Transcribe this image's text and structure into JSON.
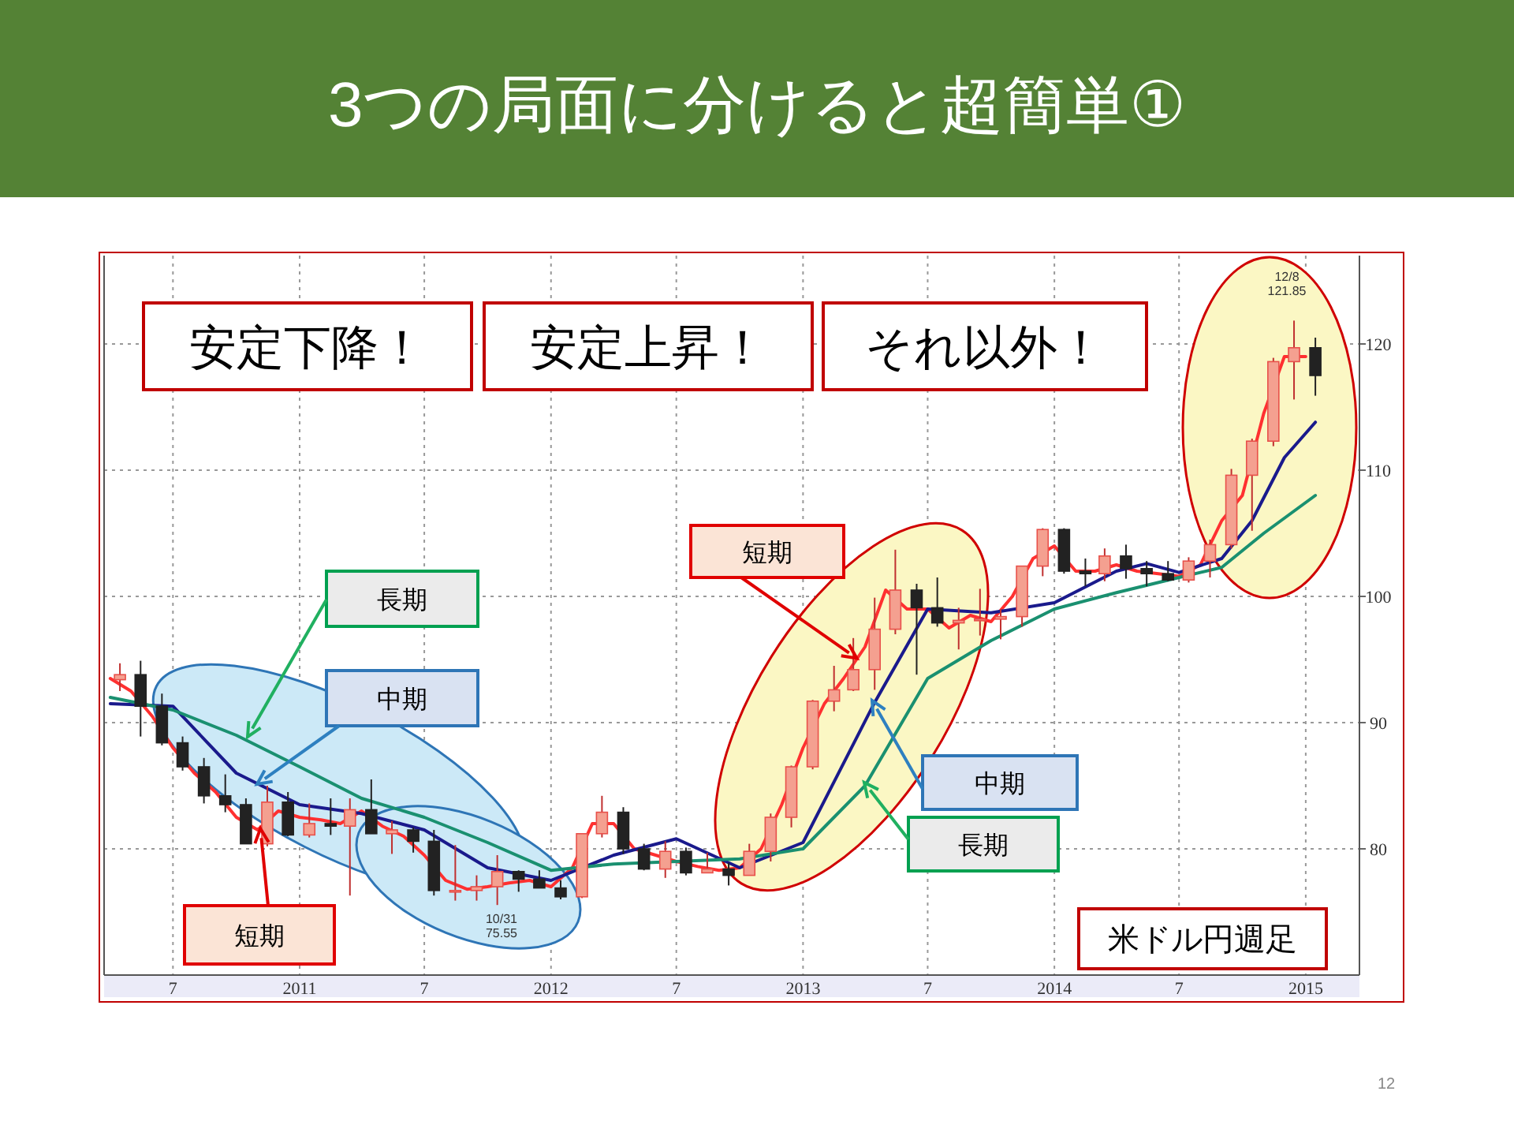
{
  "chart_data": {
    "type": "candlestick",
    "title": "3つの局面に分けると超簡単①",
    "x": [
      "2010-04-15",
      "2010-05-15",
      "2010-06-15",
      "2010-07-15",
      "2010-08-15",
      "2010-09-15",
      "2010-10-15",
      "2010-11-15",
      "2010-12-15",
      "2011-01-15",
      "2011-02-15",
      "2011-03-15",
      "2011-04-15",
      "2011-05-15",
      "2011-06-15",
      "2011-07-15",
      "2011-08-15",
      "2011-09-15",
      "2011-10-15",
      "2011-11-15",
      "2011-12-15",
      "2012-01-15",
      "2012-02-15",
      "2012-03-15",
      "2012-04-15",
      "2012-05-15",
      "2012-06-15",
      "2012-07-15",
      "2012-08-15",
      "2012-09-15",
      "2012-10-15",
      "2012-11-15",
      "2012-12-15",
      "2013-01-15",
      "2013-02-15",
      "2013-03-15",
      "2013-04-15",
      "2013-05-15",
      "2013-06-15",
      "2013-07-15",
      "2013-08-15",
      "2013-09-15",
      "2013-10-15",
      "2013-11-15",
      "2013-12-15",
      "2014-01-15",
      "2014-02-15",
      "2014-03-15",
      "2014-04-15",
      "2014-05-15",
      "2014-06-15",
      "2014-07-15",
      "2014-08-15",
      "2014-09-15",
      "2014-10-15",
      "2014-11-15",
      "2014-12-15",
      "2015-01-15"
    ],
    "ohlc": [
      [
        93.4,
        94.7,
        92.5,
        93.8
      ],
      [
        93.8,
        94.9,
        88.9,
        91.3
      ],
      [
        91.3,
        92.3,
        88.2,
        88.4
      ],
      [
        88.4,
        88.9,
        86.2,
        86.5
      ],
      [
        86.5,
        87.2,
        83.6,
        84.2
      ],
      [
        84.2,
        85.9,
        82.9,
        83.5
      ],
      [
        83.5,
        84.0,
        80.4,
        80.4
      ],
      [
        80.4,
        85.0,
        80.2,
        83.7
      ],
      [
        83.7,
        84.5,
        81.0,
        81.1
      ],
      [
        81.1,
        83.6,
        80.9,
        82.0
      ],
      [
        82.0,
        84.0,
        81.1,
        81.8
      ],
      [
        81.8,
        84.0,
        76.3,
        83.1
      ],
      [
        83.1,
        85.5,
        81.2,
        81.2
      ],
      [
        81.2,
        82.2,
        79.6,
        81.5
      ],
      [
        81.5,
        81.7,
        79.7,
        80.6
      ],
      [
        80.6,
        81.5,
        76.3,
        76.7
      ],
      [
        76.7,
        80.3,
        75.9,
        76.7
      ],
      [
        76.7,
        77.9,
        75.9,
        77.0
      ],
      [
        77.0,
        79.5,
        75.55,
        78.2
      ],
      [
        78.2,
        78.3,
        76.6,
        77.6
      ],
      [
        77.6,
        78.3,
        76.9,
        76.9
      ],
      [
        76.9,
        77.5,
        76.0,
        76.2
      ],
      [
        76.2,
        81.2,
        76.1,
        81.2
      ],
      [
        81.2,
        84.2,
        80.9,
        82.9
      ],
      [
        82.9,
        83.3,
        79.6,
        80.0
      ],
      [
        80.0,
        80.4,
        78.3,
        78.4
      ],
      [
        78.4,
        80.6,
        77.7,
        79.8
      ],
      [
        79.8,
        80.1,
        77.9,
        78.1
      ],
      [
        78.1,
        79.7,
        78.1,
        78.4
      ],
      [
        78.4,
        78.9,
        77.1,
        77.9
      ],
      [
        77.9,
        80.4,
        77.9,
        79.8
      ],
      [
        79.8,
        82.8,
        79.0,
        82.5
      ],
      [
        82.5,
        86.6,
        81.7,
        86.5
      ],
      [
        86.5,
        91.8,
        86.3,
        91.7
      ],
      [
        91.7,
        94.5,
        90.9,
        92.6
      ],
      [
        92.6,
        96.7,
        92.5,
        94.2
      ],
      [
        94.2,
        99.9,
        92.6,
        97.4
      ],
      [
        97.4,
        103.7,
        97.0,
        100.5
      ],
      [
        100.5,
        101.0,
        93.8,
        99.1
      ],
      [
        99.1,
        101.5,
        97.6,
        97.9
      ],
      [
        97.9,
        99.1,
        95.8,
        98.1
      ],
      [
        98.1,
        100.6,
        96.9,
        98.2
      ],
      [
        98.2,
        99.0,
        96.6,
        98.4
      ],
      [
        98.4,
        102.4,
        97.6,
        102.4
      ],
      [
        102.4,
        105.4,
        101.6,
        105.3
      ],
      [
        105.3,
        105.4,
        101.8,
        102.0
      ],
      [
        102.0,
        103.0,
        100.8,
        101.8
      ],
      [
        101.8,
        103.8,
        101.2,
        103.2
      ],
      [
        103.2,
        104.1,
        101.4,
        102.2
      ],
      [
        102.2,
        102.8,
        100.8,
        101.8
      ],
      [
        101.8,
        102.8,
        101.2,
        101.3
      ],
      [
        101.3,
        103.1,
        101.1,
        102.8
      ],
      [
        102.8,
        104.5,
        101.5,
        104.1
      ],
      [
        104.1,
        110.1,
        103.8,
        109.6
      ],
      [
        109.6,
        112.5,
        105.2,
        112.3
      ],
      [
        112.3,
        118.9,
        111.9,
        118.6
      ],
      [
        118.6,
        121.85,
        115.6,
        119.7
      ],
      [
        119.7,
        120.5,
        115.9,
        117.5
      ]
    ],
    "series": [
      {
        "type": "line",
        "color": "#ff3030",
        "x": [
          "2010-04-01",
          "2010-05-01",
          "2010-06-01",
          "2010-07-01",
          "2010-08-01",
          "2010-09-01",
          "2010-10-01",
          "2010-11-01",
          "2010-12-01",
          "2011-01-01",
          "2011-02-01",
          "2011-03-01",
          "2011-04-01",
          "2011-05-01",
          "2011-06-01",
          "2011-07-01",
          "2011-08-01",
          "2011-09-01",
          "2011-10-01",
          "2011-11-01",
          "2011-12-01",
          "2012-01-01",
          "2012-02-01",
          "2012-03-01",
          "2012-04-01",
          "2012-05-01",
          "2012-06-01",
          "2012-07-01",
          "2012-08-01",
          "2012-09-01",
          "2012-10-01",
          "2012-11-01",
          "2012-12-01",
          "2013-01-01",
          "2013-02-01",
          "2013-03-01",
          "2013-04-01",
          "2013-05-01",
          "2013-06-01",
          "2013-07-01",
          "2013-08-01",
          "2013-09-01",
          "2013-10-01",
          "2013-11-01",
          "2013-12-01",
          "2014-01-01",
          "2014-02-01",
          "2014-03-01",
          "2014-04-01",
          "2014-05-01",
          "2014-06-01",
          "2014-07-01",
          "2014-08-01",
          "2014-09-01",
          "2014-10-01",
          "2014-11-01",
          "2014-12-01",
          "2015-01-01"
        ],
        "values": [
          93.5,
          92.5,
          90.5,
          88.0,
          86.0,
          84.5,
          82.5,
          81.5,
          83.0,
          82.5,
          82.3,
          82.0,
          83.0,
          81.8,
          81.0,
          79.5,
          77.5,
          76.8,
          77.0,
          77.3,
          77.5,
          77.0,
          78.5,
          82.0,
          82.0,
          80.0,
          79.5,
          79.0,
          78.6,
          78.3,
          78.5,
          80.0,
          83.5,
          88.0,
          91.5,
          93.5,
          96.0,
          100.5,
          99.0,
          99.0,
          97.5,
          98.5,
          98.0,
          100.0,
          103.0,
          104.0,
          102.0,
          102.0,
          102.5,
          102.0,
          101.8,
          101.6,
          102.5,
          106.0,
          108.0,
          114.5,
          119.0,
          119.0
        ]
      },
      {
        "type": "line",
        "color": "#1a1a8c",
        "x": [
          "2010-04-01",
          "2010-07-01",
          "2010-10-01",
          "2011-01-01",
          "2011-04-01",
          "2011-07-01",
          "2011-10-01",
          "2012-01-01",
          "2012-04-01",
          "2012-07-01",
          "2012-10-01",
          "2013-01-01",
          "2013-04-15",
          "2013-07-01",
          "2013-10-01",
          "2014-01-01",
          "2014-04-01",
          "2014-05-15",
          "2014-07-01",
          "2014-09-01",
          "2014-10-15",
          "2014-12-01",
          "2015-01-15"
        ],
        "values": [
          91.5,
          91.3,
          86.0,
          83.5,
          82.8,
          81.5,
          78.5,
          77.5,
          79.5,
          80.8,
          78.5,
          80.5,
          91.6,
          99.0,
          98.7,
          99.5,
          102.0,
          102.6,
          101.9,
          103.0,
          106.0,
          111.0,
          113.8
        ]
      },
      {
        "type": "line",
        "color": "#1a9070",
        "x": [
          "2010-04-01",
          "2010-07-01",
          "2010-10-01",
          "2011-01-01",
          "2011-04-01",
          "2011-07-01",
          "2011-10-01",
          "2012-01-01",
          "2012-04-01",
          "2012-07-01",
          "2012-10-01",
          "2013-01-01",
          "2013-04-01",
          "2013-07-01",
          "2013-10-01",
          "2014-01-01",
          "2014-04-01",
          "2014-07-01",
          "2014-09-01",
          "2014-11-01",
          "2015-01-15"
        ],
        "values": [
          92.0,
          91.0,
          89.0,
          86.5,
          84.0,
          82.5,
          80.5,
          78.3,
          78.8,
          79.0,
          79.2,
          80.0,
          85.0,
          93.5,
          96.5,
          99.0,
          100.3,
          101.5,
          102.3,
          105.0,
          108.0
        ]
      }
    ],
    "xlim": [
      "2010-03-23",
      "2015-03-20"
    ],
    "xticks": [
      {
        "value": "2010-07-01",
        "label": "7"
      },
      {
        "value": "2011-01-01",
        "label": "2011"
      },
      {
        "value": "2011-07-01",
        "label": "7"
      },
      {
        "value": "2012-01-01",
        "label": "2012"
      },
      {
        "value": "2012-07-01",
        "label": "7"
      },
      {
        "value": "2013-01-01",
        "label": "2013"
      },
      {
        "value": "2013-07-01",
        "label": "7"
      },
      {
        "value": "2014-01-01",
        "label": "2014"
      },
      {
        "value": "2014-07-01",
        "label": "7"
      },
      {
        "value": "2015-01-01",
        "label": "2015"
      }
    ],
    "ylim": [
      70,
      127
    ],
    "yticks": [
      80,
      90,
      100,
      110,
      120
    ],
    "grid": true,
    "annotations": [
      "安定下降！",
      "安定上昇！",
      "それ以外！",
      "長期",
      "中期",
      {
        "text": "短期",
        "x": "2010-11-05",
        "y": 81.6
      },
      {
        "text": "短期",
        "x": "2013-03-20",
        "y": 95.1
      },
      "中期",
      "長期",
      "米ドル円週足",
      "12/8\n121.85",
      "10/31\n75.55",
      "12"
    ]
  }
}
